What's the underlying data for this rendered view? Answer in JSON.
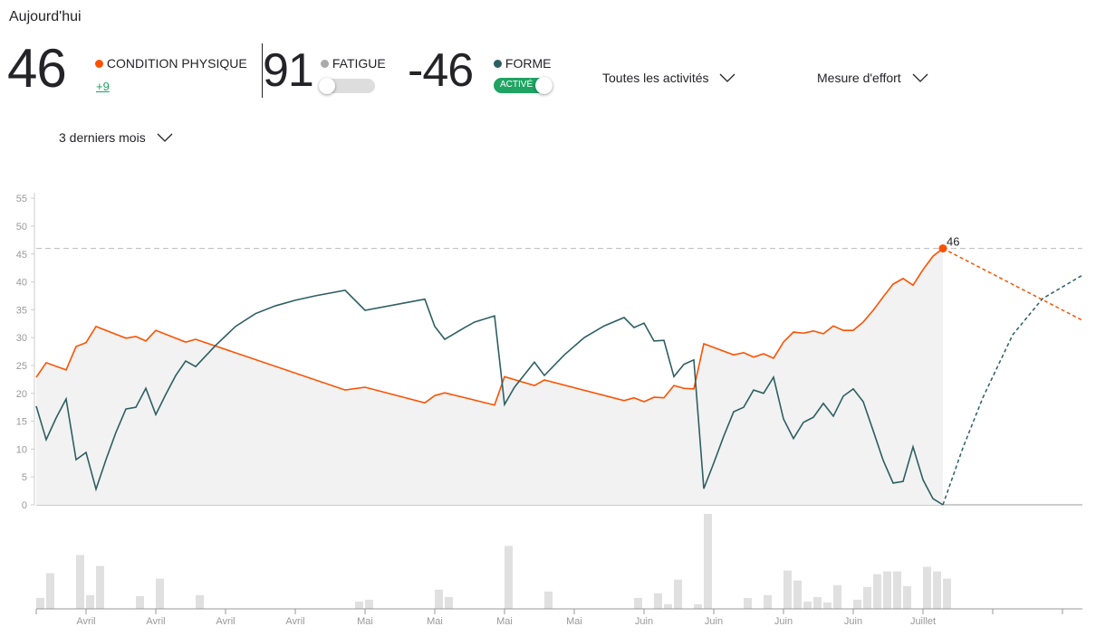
{
  "header": {
    "title": "Aujourd'hui",
    "fitness": {
      "value": 46,
      "label": "CONDITION PHYSIQUE",
      "change": "+9"
    },
    "fatigue": {
      "value": 91,
      "label": "FATIGUE"
    },
    "form": {
      "value": -46,
      "label": "FORME",
      "toggle": "ACTIVÉ"
    },
    "filters": [
      "Toutes les activités",
      "Mesure d'effort",
      "3 derniers mois"
    ]
  },
  "chart_data": {
    "type": "line",
    "xlim": [
      0,
      105
    ],
    "ylim": [
      0,
      56
    ],
    "yticks": [
      0,
      5,
      10,
      15,
      20,
      25,
      30,
      35,
      40,
      45,
      50,
      55
    ],
    "xticks": [
      5,
      12,
      19,
      26,
      33,
      40,
      47,
      54,
      61,
      68,
      75,
      82,
      89,
      96,
      103
    ],
    "xtick_labels": [
      "Avril",
      "Avril",
      "Avril",
      "Avril",
      "Mai",
      "Mai",
      "Mai",
      "Mai",
      "Juin",
      "Juin",
      "Juin",
      "Juin",
      "Juillet",
      null,
      null
    ],
    "reference_line": 46,
    "series": [
      {
        "name": "CONDITION PHYSIQUE",
        "color": "#fc5200",
        "x": [
          0,
          1,
          3,
          4,
          5,
          6,
          9,
          10,
          11,
          12,
          15,
          16,
          31,
          33,
          39,
          40,
          41,
          46,
          47,
          50,
          51,
          59,
          60,
          61,
          62,
          63,
          64,
          65,
          66,
          67,
          70,
          71,
          72,
          73,
          74,
          75,
          76,
          77,
          78,
          79,
          80,
          81,
          82,
          83,
          84,
          85,
          86,
          87,
          88,
          89,
          90,
          91
        ],
        "values": [
          22.9,
          25.5,
          24.2,
          28.4,
          29.1,
          32,
          29.9,
          30.2,
          29.4,
          31.3,
          29.2,
          29.7,
          20.6,
          21.1,
          18.3,
          19.6,
          20.1,
          17.9,
          23,
          21.4,
          22.4,
          18.7,
          19.2,
          18.5,
          19.3,
          19.2,
          21.4,
          20.9,
          20.8,
          28.9,
          26.9,
          27.3,
          26.5,
          27.1,
          26.3,
          29.2,
          31,
          30.8,
          31.2,
          30.7,
          32.1,
          31.3,
          31.3,
          32.8,
          34.9,
          37.3,
          39.6,
          40.6,
          39.4,
          42.2,
          44.6,
          46
        ],
        "projection": {
          "x": [
            105
          ],
          "values": [
            33.1
          ]
        }
      },
      {
        "name": "FORME",
        "color": "#2d5f62",
        "x": [
          0,
          1,
          2,
          3,
          4,
          5,
          6,
          7,
          8,
          9,
          10,
          11,
          12,
          13,
          14,
          15,
          16,
          18,
          20,
          22,
          24,
          26,
          28,
          31,
          33,
          39,
          40,
          41,
          43,
          44,
          46,
          47,
          48,
          50,
          51,
          53,
          55,
          57,
          59,
          60,
          61,
          62,
          63,
          64,
          65,
          66,
          67,
          68,
          69,
          70,
          71,
          72,
          73,
          74,
          75,
          76,
          77,
          78,
          79,
          80,
          81,
          82,
          83,
          84,
          85,
          86,
          87,
          88,
          89,
          90,
          91
        ],
        "values": [
          17.7,
          11.7,
          15.6,
          19,
          8.1,
          9.4,
          2.8,
          8.1,
          13,
          17.2,
          17.5,
          20.9,
          16.2,
          19.8,
          23.2,
          25.8,
          24.8,
          28.6,
          32,
          34.3,
          35.7,
          36.7,
          37.5,
          38.5,
          34.9,
          36.9,
          32,
          29.7,
          31.8,
          32.8,
          33.9,
          18,
          21.1,
          25.6,
          23.2,
          26.9,
          30,
          32.1,
          33.6,
          31.8,
          32.6,
          29.4,
          29.5,
          23,
          25.2,
          26,
          2.9,
          7.5,
          12.3,
          16.7,
          17.5,
          20.6,
          20,
          22.9,
          15.4,
          11.9,
          14.8,
          15.7,
          18.2,
          15.9,
          19.5,
          20.8,
          18.5,
          13.3,
          8,
          3.9,
          4.2,
          10.4,
          4.5,
          1.1,
          0
        ],
        "projection": {
          "x": [
            93,
            95,
            98,
            101,
            105
          ],
          "values": [
            10.2,
            19.2,
            30.5,
            37,
            41.2
          ]
        }
      }
    ],
    "bars": {
      "color": "#e0e0e0",
      "x": [
        0,
        1,
        4,
        5,
        6,
        10,
        12,
        16,
        32,
        33,
        40,
        41,
        47,
        51,
        60,
        62,
        63,
        64,
        66,
        67,
        71,
        73,
        75,
        76,
        77,
        78,
        79,
        80,
        82,
        83,
        84,
        85,
        86,
        87,
        89,
        90,
        91
      ],
      "values": [
        12,
        39,
        59,
        15,
        47,
        14,
        33,
        15,
        8,
        10,
        21,
        13,
        69,
        19,
        12,
        17,
        5,
        32,
        5,
        104,
        12,
        15,
        42,
        31,
        8,
        13,
        7,
        26,
        10,
        24,
        38,
        41,
        41,
        25,
        46,
        41,
        33
      ]
    }
  }
}
